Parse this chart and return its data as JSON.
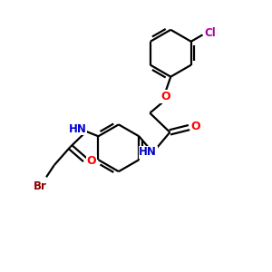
{
  "background_color": "#ffffff",
  "bond_color": "#000000",
  "atom_colors": {
    "N": "#0000cd",
    "O": "#ff0000",
    "Cl": "#aa00aa",
    "Br": "#8b0000",
    "C": "#000000"
  },
  "figsize": [
    3.0,
    3.0
  ],
  "dpi": 100,
  "line_width": 1.6
}
